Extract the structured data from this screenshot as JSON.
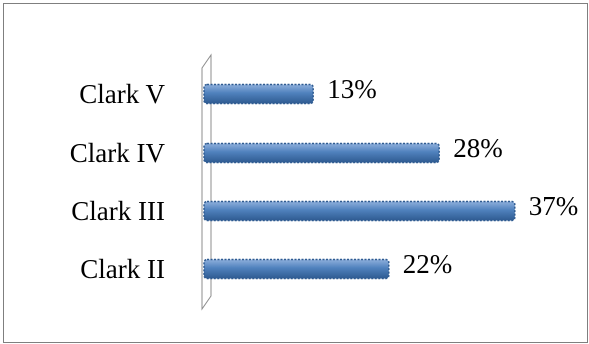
{
  "chart_data": {
    "type": "bar",
    "orientation": "horizontal",
    "categories": [
      "Clark V",
      "Clark IV",
      "Clark III",
      "Clark II"
    ],
    "values": [
      13,
      28,
      37,
      22
    ],
    "value_labels": [
      "13%",
      "28%",
      "37%",
      "22%"
    ],
    "unit": "%",
    "xlim": [
      0,
      40
    ],
    "grid": false,
    "legend": "none",
    "bar_color": "#4f81bd",
    "bar_dark": "#2f5b91",
    "bar_light": "#8fb0dc"
  }
}
